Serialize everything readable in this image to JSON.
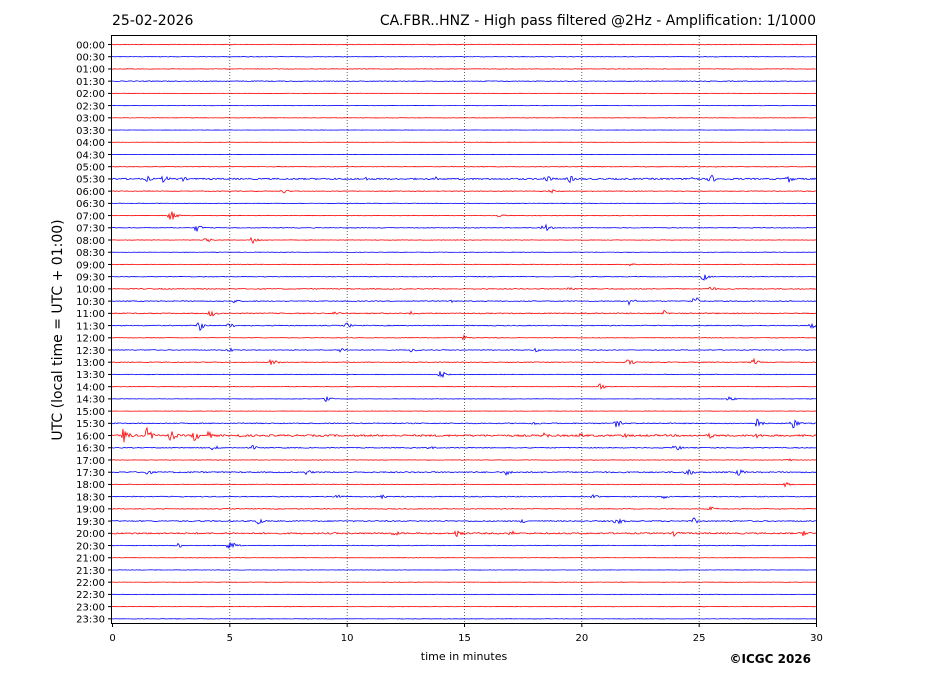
{
  "header": {
    "date": "25-02-2026",
    "title": "CA.FBR..HNZ - High pass filtered @2Hz - Amplification: 1/1000"
  },
  "footer": {
    "copyright": "©ICGC 2026"
  },
  "chart_data": {
    "type": "line",
    "title": "CA.FBR..HNZ - High pass filtered @2Hz - Amplification: 1/1000",
    "xlabel": "time in minutes",
    "ylabel": "UTC (local time = UTC + 01:00)",
    "xlim": [
      0,
      30
    ],
    "xticks": [
      0,
      5,
      10,
      15,
      20,
      25,
      30
    ],
    "grid": "vertical dotted at 5-minute intervals",
    "trace_colors": [
      "#ff0000",
      "#0000ff"
    ],
    "rows": [
      {
        "label": "00:00",
        "activity": 0.5,
        "events": []
      },
      {
        "label": "00:30",
        "activity": 0.4,
        "events": []
      },
      {
        "label": "01:00",
        "activity": 0.4,
        "events": []
      },
      {
        "label": "01:30",
        "activity": 0.6,
        "events": []
      },
      {
        "label": "02:00",
        "activity": 0.3,
        "events": []
      },
      {
        "label": "02:30",
        "activity": 0.3,
        "events": []
      },
      {
        "label": "03:00",
        "activity": 0.3,
        "events": []
      },
      {
        "label": "03:30",
        "activity": 0.2,
        "events": []
      },
      {
        "label": "04:00",
        "activity": 0.2,
        "events": []
      },
      {
        "label": "04:30",
        "activity": 0.2,
        "events": []
      },
      {
        "label": "05:00",
        "activity": 0.4,
        "events": []
      },
      {
        "label": "05:30",
        "activity": 1.2,
        "events": [
          [
            1.5,
            1.5
          ],
          [
            2.2,
            2.0
          ],
          [
            3.0,
            1.2
          ],
          [
            10.8,
            1.0
          ],
          [
            13.8,
            1.0
          ],
          [
            18.5,
            2.0
          ],
          [
            19.5,
            2.0
          ],
          [
            24.7,
            2.0
          ],
          [
            25.5,
            2.5
          ],
          [
            28.8,
            2.0
          ]
        ]
      },
      {
        "label": "06:00",
        "activity": 0.5,
        "events": [
          [
            7.3,
            1.2
          ],
          [
            18.7,
            1.0
          ]
        ]
      },
      {
        "label": "06:30",
        "activity": 0.4,
        "events": []
      },
      {
        "label": "07:00",
        "activity": 0.4,
        "events": [
          [
            2.5,
            3.0
          ],
          [
            16.5,
            1.0
          ]
        ]
      },
      {
        "label": "07:30",
        "activity": 0.5,
        "events": [
          [
            3.6,
            2.0
          ],
          [
            18.4,
            2.5
          ]
        ]
      },
      {
        "label": "08:00",
        "activity": 0.4,
        "events": [
          [
            4.0,
            1.5
          ],
          [
            6.0,
            2.0
          ]
        ]
      },
      {
        "label": "08:30",
        "activity": 0.3,
        "events": []
      },
      {
        "label": "09:00",
        "activity": 0.5,
        "events": [
          [
            22.0,
            1.2
          ]
        ]
      },
      {
        "label": "09:30",
        "activity": 0.5,
        "events": [
          [
            25.2,
            2.0
          ]
        ]
      },
      {
        "label": "10:00",
        "activity": 0.7,
        "events": [
          [
            19.5,
            1.2
          ],
          [
            25.5,
            1.5
          ]
        ]
      },
      {
        "label": "10:30",
        "activity": 0.7,
        "events": [
          [
            5.2,
            1.0
          ],
          [
            14.5,
            1.2
          ],
          [
            22.0,
            2.0
          ],
          [
            24.8,
            3.0
          ]
        ]
      },
      {
        "label": "11:00",
        "activity": 0.8,
        "events": [
          [
            4.2,
            2.0
          ],
          [
            9.5,
            1.5
          ],
          [
            12.8,
            1.5
          ],
          [
            23.5,
            1.5
          ]
        ]
      },
      {
        "label": "11:30",
        "activity": 0.7,
        "events": [
          [
            3.7,
            3.0
          ],
          [
            5.0,
            1.5
          ],
          [
            10.0,
            1.5
          ],
          [
            29.8,
            1.5
          ]
        ]
      },
      {
        "label": "12:00",
        "activity": 0.4,
        "events": [
          [
            15.0,
            1.2
          ]
        ]
      },
      {
        "label": "12:30",
        "activity": 0.6,
        "events": [
          [
            5.0,
            1.2
          ],
          [
            9.7,
            1.5
          ],
          [
            12.8,
            1.5
          ],
          [
            18.0,
            1.2
          ]
        ]
      },
      {
        "label": "13:00",
        "activity": 0.6,
        "events": [
          [
            6.8,
            2.0
          ],
          [
            22.0,
            2.0
          ],
          [
            27.3,
            2.0
          ]
        ]
      },
      {
        "label": "13:30",
        "activity": 0.4,
        "events": [
          [
            14.0,
            2.0
          ]
        ]
      },
      {
        "label": "14:00",
        "activity": 0.4,
        "events": [
          [
            20.8,
            1.5
          ]
        ]
      },
      {
        "label": "14:30",
        "activity": 0.3,
        "events": [
          [
            9.1,
            1.5
          ],
          [
            26.3,
            1.5
          ]
        ]
      },
      {
        "label": "15:00",
        "activity": 0.3,
        "events": []
      },
      {
        "label": "15:30",
        "activity": 0.8,
        "events": [
          [
            18.0,
            1.2
          ],
          [
            21.5,
            2.0
          ],
          [
            27.5,
            2.5
          ],
          [
            29.0,
            3.0
          ]
        ]
      },
      {
        "label": "16:00",
        "activity": 1.5,
        "events": [
          [
            0.5,
            4.0
          ],
          [
            1.5,
            4.0
          ],
          [
            2.5,
            3.0
          ],
          [
            3.5,
            3.0
          ],
          [
            4.1,
            2.0
          ],
          [
            5.3,
            1.5
          ],
          [
            18.4,
            2.0
          ],
          [
            20.0,
            1.5
          ],
          [
            21.8,
            1.5
          ],
          [
            25.5,
            1.5
          ],
          [
            27.5,
            1.5
          ]
        ]
      },
      {
        "label": "16:30",
        "activity": 0.7,
        "events": [
          [
            4.3,
            1.5
          ],
          [
            6.0,
            1.2
          ],
          [
            13.5,
            1.2
          ],
          [
            24.0,
            2.0
          ]
        ]
      },
      {
        "label": "17:00",
        "activity": 0.4,
        "events": [
          [
            28.7,
            1.2
          ]
        ]
      },
      {
        "label": "17:30",
        "activity": 1.0,
        "events": [
          [
            1.5,
            1.5
          ],
          [
            8.3,
            1.5
          ],
          [
            16.8,
            1.5
          ],
          [
            24.5,
            2.5
          ],
          [
            26.7,
            2.0
          ]
        ]
      },
      {
        "label": "18:00",
        "activity": 0.5,
        "events": [
          [
            28.7,
            1.2
          ]
        ]
      },
      {
        "label": "18:30",
        "activity": 0.7,
        "events": [
          [
            9.5,
            2.0
          ],
          [
            11.5,
            1.0
          ],
          [
            20.5,
            1.2
          ],
          [
            23.5,
            1.2
          ]
        ]
      },
      {
        "label": "19:00",
        "activity": 0.6,
        "events": [
          [
            25.5,
            1.2
          ]
        ]
      },
      {
        "label": "19:30",
        "activity": 0.9,
        "events": [
          [
            6.2,
            2.0
          ],
          [
            17.5,
            1.2
          ],
          [
            21.5,
            2.5
          ],
          [
            24.8,
            1.5
          ]
        ]
      },
      {
        "label": "20:00",
        "activity": 1.2,
        "events": [
          [
            12.0,
            1.5
          ],
          [
            14.7,
            2.5
          ],
          [
            17.0,
            1.5
          ],
          [
            24.0,
            2.0
          ],
          [
            29.5,
            2.0
          ]
        ]
      },
      {
        "label": "20:30",
        "activity": 0.5,
        "events": [
          [
            2.8,
            1.5
          ],
          [
            5.0,
            3.0
          ]
        ]
      },
      {
        "label": "21:00",
        "activity": 0.3,
        "events": []
      },
      {
        "label": "21:30",
        "activity": 0.3,
        "events": []
      },
      {
        "label": "22:00",
        "activity": 0.3,
        "events": []
      },
      {
        "label": "22:30",
        "activity": 0.3,
        "events": []
      },
      {
        "label": "23:00",
        "activity": 0.3,
        "events": []
      },
      {
        "label": "23:30",
        "activity": 0.3,
        "events": []
      }
    ]
  }
}
